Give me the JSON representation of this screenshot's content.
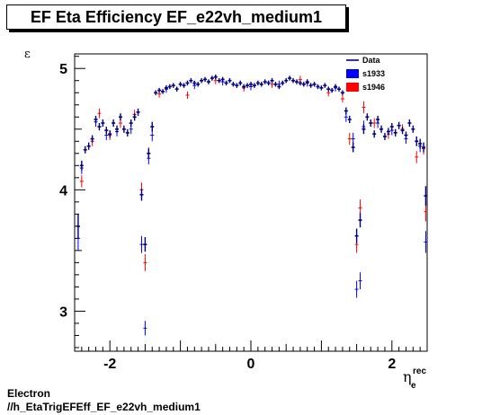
{
  "chart_data": {
    "type": "scatter",
    "title": "EF Eta Efficiency EF_e22vh_medium1",
    "ylabel": "ε",
    "xlabel_main": "η",
    "xlabel_sup": "rec",
    "xlabel_sub": "e",
    "xlim": [
      -2.5,
      2.5
    ],
    "ylim": [
      2.67,
      5.12
    ],
    "x_ticks": [
      -2,
      0,
      2
    ],
    "y_ticks": [
      3,
      4,
      5
    ],
    "legend": {
      "position": "top-right",
      "entries": [
        {
          "label": "Data",
          "color": "#000080",
          "kind": "line"
        },
        {
          "label": "s1933",
          "color": "#0000ff",
          "kind": "box"
        },
        {
          "label": "s1946",
          "color": "#ff0000",
          "kind": "box"
        }
      ]
    },
    "series": [
      {
        "name": "Data",
        "color": "#000080",
        "points": [
          [
            -2.45,
            3.7,
            0.1
          ],
          [
            -2.4,
            4.2,
            0.04
          ],
          [
            -2.35,
            4.33,
            0.03
          ],
          [
            -2.3,
            4.36,
            0.03
          ],
          [
            -2.25,
            4.42,
            0.03
          ],
          [
            -2.2,
            4.58,
            0.03
          ],
          [
            -2.15,
            4.52,
            0.03
          ],
          [
            -2.1,
            4.55,
            0.03
          ],
          [
            -2.05,
            4.49,
            0.03
          ],
          [
            -2.0,
            4.46,
            0.03
          ],
          [
            -1.95,
            4.55,
            0.03
          ],
          [
            -1.9,
            4.5,
            0.03
          ],
          [
            -1.85,
            4.6,
            0.03
          ],
          [
            -1.8,
            4.5,
            0.03
          ],
          [
            -1.75,
            4.47,
            0.03
          ],
          [
            -1.7,
            4.55,
            0.03
          ],
          [
            -1.65,
            4.6,
            0.03
          ],
          [
            -1.6,
            4.64,
            0.03
          ],
          [
            -1.55,
            3.96,
            0.05
          ],
          [
            -1.5,
            3.55,
            0.06
          ],
          [
            -1.45,
            4.3,
            0.04
          ],
          [
            -1.4,
            4.52,
            0.04
          ],
          [
            -1.35,
            4.8,
            0.02
          ],
          [
            -1.3,
            4.82,
            0.02
          ],
          [
            -1.25,
            4.81,
            0.02
          ],
          [
            -1.2,
            4.84,
            0.02
          ],
          [
            -1.15,
            4.85,
            0.02
          ],
          [
            -1.1,
            4.86,
            0.02
          ],
          [
            -1.05,
            4.83,
            0.02
          ],
          [
            -1.0,
            4.87,
            0.02
          ],
          [
            -0.95,
            4.86,
            0.02
          ],
          [
            -0.9,
            4.88,
            0.02
          ],
          [
            -0.85,
            4.9,
            0.02
          ],
          [
            -0.8,
            4.88,
            0.02
          ],
          [
            -0.75,
            4.87,
            0.02
          ],
          [
            -0.7,
            4.9,
            0.02
          ],
          [
            -0.65,
            4.91,
            0.02
          ],
          [
            -0.6,
            4.89,
            0.02
          ],
          [
            -0.55,
            4.92,
            0.02
          ],
          [
            -0.5,
            4.93,
            0.02
          ],
          [
            -0.45,
            4.9,
            0.02
          ],
          [
            -0.4,
            4.91,
            0.02
          ],
          [
            -0.35,
            4.88,
            0.02
          ],
          [
            -0.3,
            4.9,
            0.02
          ],
          [
            -0.25,
            4.87,
            0.02
          ],
          [
            -0.2,
            4.86,
            0.02
          ],
          [
            -0.15,
            4.88,
            0.02
          ],
          [
            -0.1,
            4.85,
            0.02
          ],
          [
            -0.05,
            4.86,
            0.02
          ],
          [
            0.0,
            4.87,
            0.02
          ],
          [
            0.05,
            4.86,
            0.02
          ],
          [
            0.1,
            4.88,
            0.02
          ],
          [
            0.15,
            4.87,
            0.02
          ],
          [
            0.2,
            4.89,
            0.02
          ],
          [
            0.25,
            4.88,
            0.02
          ],
          [
            0.3,
            4.9,
            0.02
          ],
          [
            0.35,
            4.87,
            0.02
          ],
          [
            0.4,
            4.85,
            0.02
          ],
          [
            0.45,
            4.88,
            0.02
          ],
          [
            0.5,
            4.9,
            0.02
          ],
          [
            0.55,
            4.92,
            0.02
          ],
          [
            0.6,
            4.9,
            0.02
          ],
          [
            0.65,
            4.89,
            0.02
          ],
          [
            0.7,
            4.88,
            0.02
          ],
          [
            0.75,
            4.87,
            0.02
          ],
          [
            0.8,
            4.89,
            0.02
          ],
          [
            0.85,
            4.86,
            0.02
          ],
          [
            0.9,
            4.87,
            0.02
          ],
          [
            0.95,
            4.85,
            0.02
          ],
          [
            1.0,
            4.84,
            0.02
          ],
          [
            1.05,
            4.86,
            0.02
          ],
          [
            1.1,
            4.83,
            0.02
          ],
          [
            1.15,
            4.82,
            0.02
          ],
          [
            1.2,
            4.85,
            0.02
          ],
          [
            1.25,
            4.83,
            0.02
          ],
          [
            1.3,
            4.8,
            0.02
          ],
          [
            1.35,
            4.65,
            0.03
          ],
          [
            1.4,
            4.58,
            0.03
          ],
          [
            1.45,
            4.35,
            0.04
          ],
          [
            1.5,
            3.62,
            0.06
          ],
          [
            1.55,
            3.75,
            0.06
          ],
          [
            1.6,
            4.5,
            0.04
          ],
          [
            1.65,
            4.6,
            0.03
          ],
          [
            1.7,
            4.55,
            0.03
          ],
          [
            1.75,
            4.46,
            0.03
          ],
          [
            1.8,
            4.58,
            0.03
          ],
          [
            1.85,
            4.5,
            0.03
          ],
          [
            1.9,
            4.44,
            0.03
          ],
          [
            1.95,
            4.48,
            0.03
          ],
          [
            2.0,
            4.52,
            0.03
          ],
          [
            2.05,
            4.47,
            0.03
          ],
          [
            2.1,
            4.53,
            0.03
          ],
          [
            2.15,
            4.49,
            0.03
          ],
          [
            2.2,
            4.45,
            0.03
          ],
          [
            2.25,
            4.55,
            0.03
          ],
          [
            2.3,
            4.5,
            0.03
          ],
          [
            2.35,
            4.4,
            0.04
          ],
          [
            2.4,
            4.38,
            0.04
          ],
          [
            2.45,
            4.35,
            0.04
          ],
          [
            2.48,
            3.95,
            0.08
          ]
        ]
      },
      {
        "name": "s1933",
        "color": "#0000ff",
        "points": [
          [
            -2.45,
            3.6,
            0.1
          ],
          [
            -2.4,
            4.18,
            0.05
          ],
          [
            -2.2,
            4.56,
            0.04
          ],
          [
            -2.05,
            4.45,
            0.04
          ],
          [
            -1.9,
            4.48,
            0.04
          ],
          [
            -1.7,
            4.5,
            0.04
          ],
          [
            -1.55,
            3.55,
            0.07
          ],
          [
            -1.5,
            2.86,
            0.06
          ],
          [
            -1.45,
            4.26,
            0.05
          ],
          [
            -1.4,
            4.45,
            0.05
          ],
          [
            -1.2,
            4.83,
            0.03
          ],
          [
            -0.8,
            4.86,
            0.03
          ],
          [
            -0.4,
            4.89,
            0.03
          ],
          [
            0.0,
            4.85,
            0.03
          ],
          [
            0.4,
            4.87,
            0.03
          ],
          [
            0.8,
            4.88,
            0.03
          ],
          [
            1.2,
            4.84,
            0.03
          ],
          [
            1.35,
            4.6,
            0.04
          ],
          [
            1.45,
            4.42,
            0.05
          ],
          [
            1.5,
            3.18,
            0.07
          ],
          [
            1.55,
            3.25,
            0.07
          ],
          [
            1.6,
            4.52,
            0.05
          ],
          [
            1.8,
            4.55,
            0.04
          ],
          [
            2.0,
            4.49,
            0.04
          ],
          [
            2.2,
            4.42,
            0.04
          ],
          [
            2.4,
            4.36,
            0.05
          ],
          [
            2.48,
            3.57,
            0.09
          ]
        ]
      },
      {
        "name": "s1946",
        "color": "#ff0000",
        "points": [
          [
            -2.4,
            4.07,
            0.05
          ],
          [
            -2.25,
            4.4,
            0.04
          ],
          [
            -2.15,
            4.63,
            0.04
          ],
          [
            -2.0,
            4.45,
            0.04
          ],
          [
            -1.85,
            4.55,
            0.04
          ],
          [
            -1.65,
            4.62,
            0.04
          ],
          [
            -1.55,
            4.0,
            0.06
          ],
          [
            -1.5,
            3.4,
            0.07
          ],
          [
            -1.45,
            4.3,
            0.05
          ],
          [
            -1.3,
            4.79,
            0.03
          ],
          [
            -0.9,
            4.78,
            0.03
          ],
          [
            -0.5,
            4.9,
            0.03
          ],
          [
            -0.1,
            4.84,
            0.03
          ],
          [
            0.3,
            4.87,
            0.03
          ],
          [
            0.7,
            4.91,
            0.03
          ],
          [
            1.1,
            4.8,
            0.03
          ],
          [
            1.3,
            4.75,
            0.03
          ],
          [
            1.4,
            4.42,
            0.05
          ],
          [
            1.5,
            3.55,
            0.07
          ],
          [
            1.55,
            3.85,
            0.07
          ],
          [
            1.6,
            4.68,
            0.05
          ],
          [
            1.75,
            4.55,
            0.04
          ],
          [
            1.95,
            4.46,
            0.04
          ],
          [
            2.15,
            4.5,
            0.04
          ],
          [
            2.35,
            4.27,
            0.05
          ],
          [
            2.45,
            4.34,
            0.05
          ],
          [
            2.48,
            3.82,
            0.08
          ]
        ]
      }
    ]
  },
  "footer": {
    "line1": "Electron",
    "line2": "//h_EtaTrigEFEff_EF_e22vh_medium1"
  }
}
